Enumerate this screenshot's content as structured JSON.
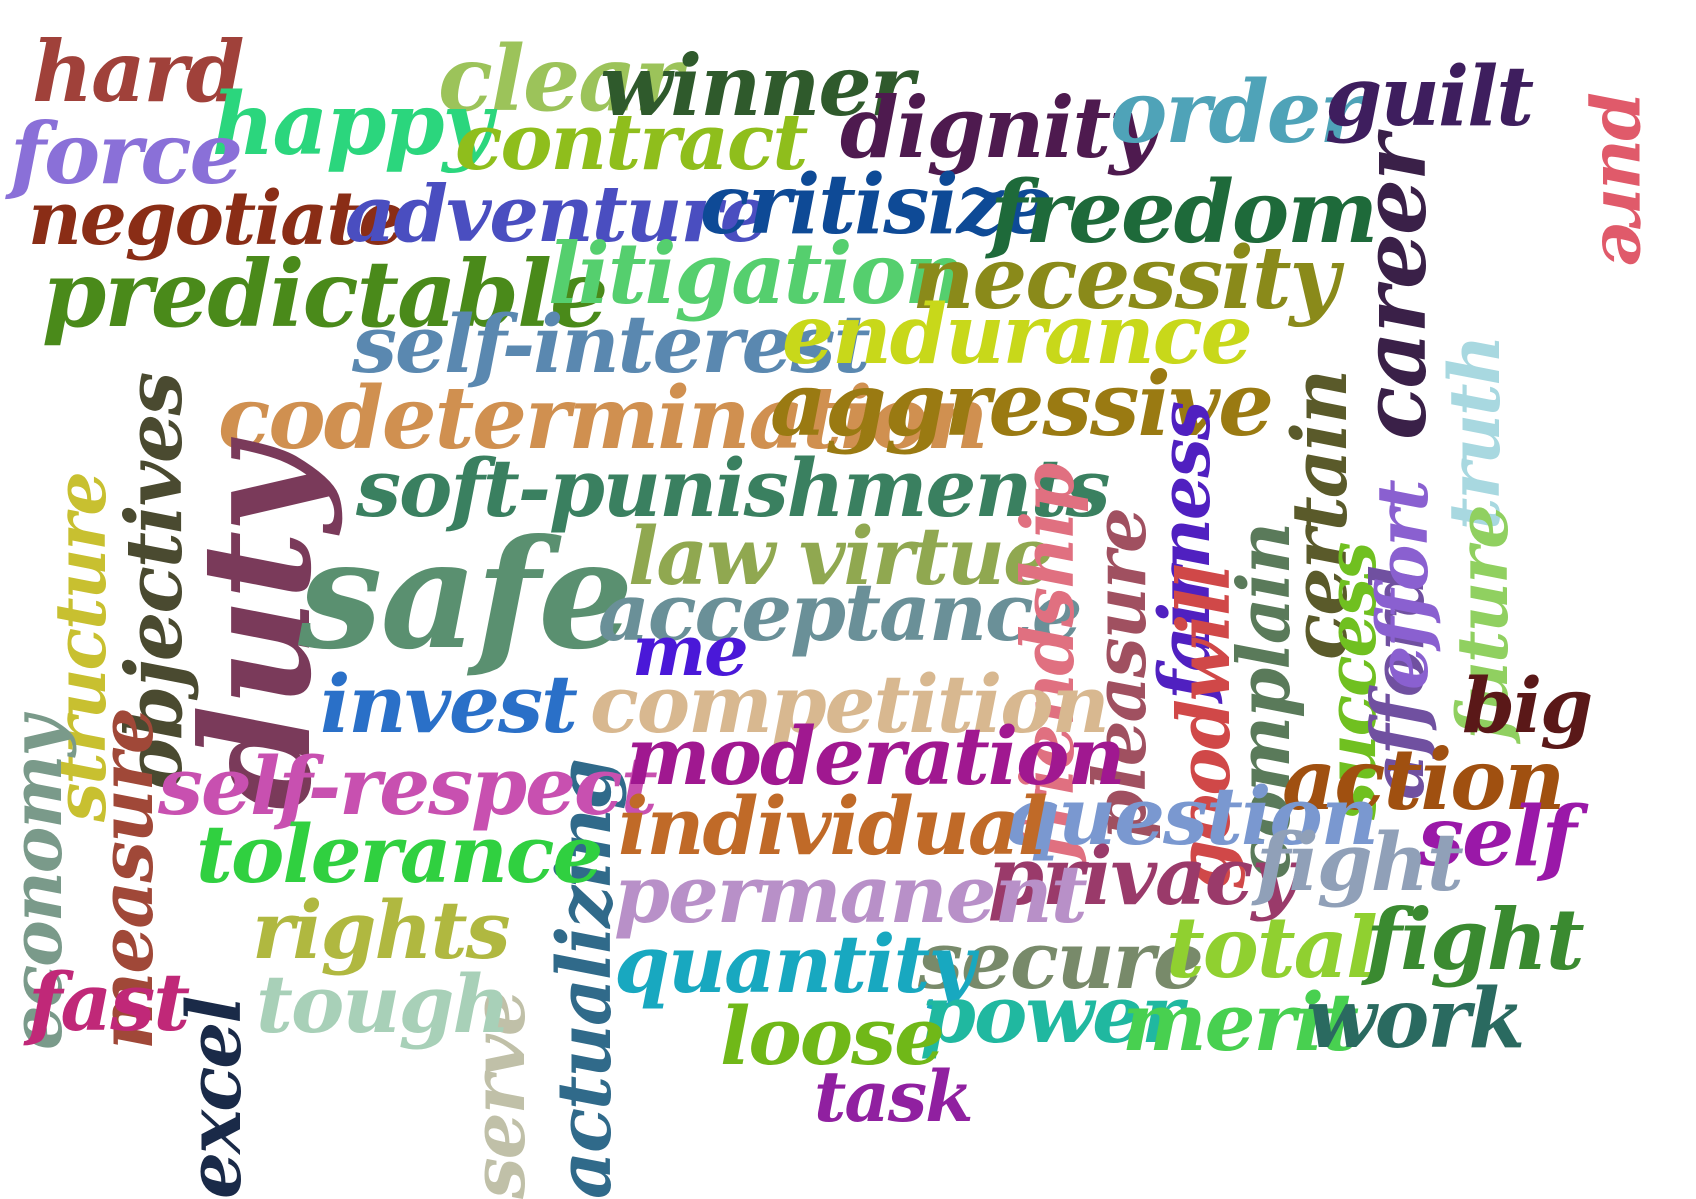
{
  "words": [
    {
      "text": "hard",
      "color": "#a0413a"
    },
    {
      "text": "clear",
      "color": "#9cc35a"
    },
    {
      "text": "winner",
      "color": "#2f5a2c"
    },
    {
      "text": "happy",
      "color": "#2bd67d"
    },
    {
      "text": "contract",
      "color": "#8fbe1c"
    },
    {
      "text": "dignity",
      "color": "#4e1a4f"
    },
    {
      "text": "order",
      "color": "#4fa3b8"
    },
    {
      "text": "guilt",
      "color": "#3e1e5e"
    },
    {
      "text": "pure",
      "color": "#e05a6a"
    },
    {
      "text": "force",
      "color": "#8a70d8"
    },
    {
      "text": "negotiate",
      "color": "#8a2d16"
    },
    {
      "text": "adventure",
      "color": "#4a4ec0"
    },
    {
      "text": "critisize",
      "color": "#0e4a96"
    },
    {
      "text": "freedom",
      "color": "#1e6a3a"
    },
    {
      "text": "career",
      "color": "#3a2048"
    },
    {
      "text": "predictable",
      "color": "#4a8a1a"
    },
    {
      "text": "litigation",
      "color": "#55cf6e"
    },
    {
      "text": "necessity",
      "color": "#8a8a1a"
    },
    {
      "text": "truth",
      "color": "#a8d8e0"
    },
    {
      "text": "self-interest",
      "color": "#5a88b0"
    },
    {
      "text": "endurance",
      "color": "#c8d81a"
    },
    {
      "text": "certain",
      "color": "#5a5a2a"
    },
    {
      "text": "codetermination",
      "color": "#d09050"
    },
    {
      "text": "aggressive",
      "color": "#9a7a12"
    },
    {
      "text": "structure",
      "color": "#c8c030"
    },
    {
      "text": "objectives",
      "color": "#4a4a30"
    },
    {
      "text": "soft-punishments",
      "color": "#3a8060"
    },
    {
      "text": "duty",
      "color": "#7a3a5a"
    },
    {
      "text": "safe",
      "color": "#5a9070"
    },
    {
      "text": "law virtue",
      "color": "#90a850"
    },
    {
      "text": "acceptance",
      "color": "#6a9098"
    },
    {
      "text": "friendship",
      "color": "#e07080"
    },
    {
      "text": "pleasure",
      "color": "#a05060"
    },
    {
      "text": "fairness",
      "color": "#5020c0"
    },
    {
      "text": "goodwill",
      "color": "#d04848"
    },
    {
      "text": "complain",
      "color": "#5a7a5a"
    },
    {
      "text": "success",
      "color": "#70c020"
    },
    {
      "text": "afford",
      "color": "#7050a0"
    },
    {
      "text": "effort",
      "color": "#8a60d0"
    },
    {
      "text": "future",
      "color": "#90d060"
    },
    {
      "text": "me",
      "color": "#4a18d8"
    },
    {
      "text": "big",
      "color": "#5a1818"
    },
    {
      "text": "actualizing",
      "color": "#306a8a"
    },
    {
      "text": "invest",
      "color": "#2a70c8"
    },
    {
      "text": "competition",
      "color": "#d8b890"
    },
    {
      "text": "economy",
      "color": "#7a9a8a"
    },
    {
      "text": "measure",
      "color": "#a04838"
    },
    {
      "text": "self-respect",
      "color": "#c850b0"
    },
    {
      "text": "moderation",
      "color": "#a01890"
    },
    {
      "text": "action",
      "color": "#a05010"
    },
    {
      "text": "question",
      "color": "#7a98d0"
    },
    {
      "text": "self",
      "color": "#9a18a8"
    },
    {
      "text": "individual",
      "color": "#c06a28"
    },
    {
      "text": "tolerance",
      "color": "#30d040"
    },
    {
      "text": "privacy",
      "color": "#9a3a6a"
    },
    {
      "text": "fight",
      "color": "#90a0b8"
    },
    {
      "text": "excel",
      "color": "#1a2a48"
    },
    {
      "text": "permanent",
      "color": "#b890c8"
    },
    {
      "text": "rights",
      "color": "#b0b840"
    },
    {
      "text": "serve",
      "color": "#c0c0a8"
    },
    {
      "text": "secure",
      "color": "#788a6a"
    },
    {
      "text": "total",
      "color": "#90d030"
    },
    {
      "text": "fight",
      "color": "#3a8a30"
    },
    {
      "text": "quantity",
      "color": "#18a8c0"
    },
    {
      "text": "fast",
      "color": "#c02878"
    },
    {
      "text": "tough",
      "color": "#a8d0b8"
    },
    {
      "text": "power",
      "color": "#20b8a0"
    },
    {
      "text": "merit",
      "color": "#48d050"
    },
    {
      "text": "work",
      "color": "#2a6a60"
    },
    {
      "text": "loose",
      "color": "#70b818"
    },
    {
      "text": "task",
      "color": "#9020a0"
    }
  ]
}
